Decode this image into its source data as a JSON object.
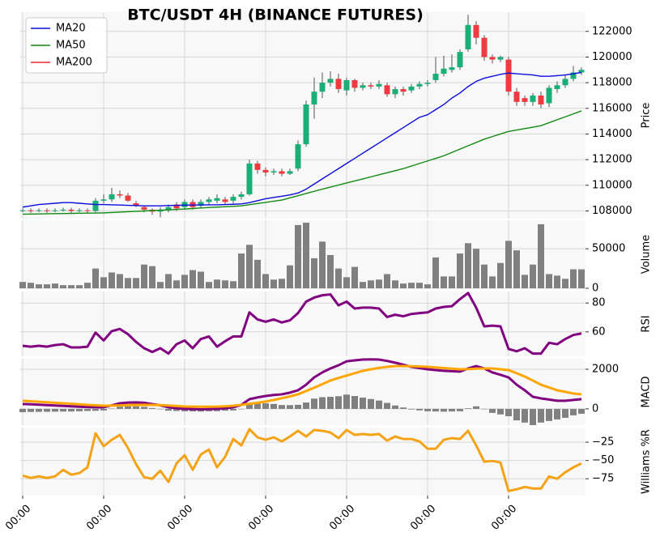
{
  "chart_data": [
    {
      "type": "candlestick",
      "title": "BTC/USDT 4H (BINANCE FUTURES)",
      "ylabel": "Price",
      "categories": [
        "00:00",
        null,
        null,
        null,
        null,
        null,
        null,
        null,
        null,
        null,
        "00:00",
        null,
        null,
        null,
        null,
        null,
        null,
        null,
        null,
        null,
        "00:00",
        null,
        null,
        null,
        null,
        null,
        null,
        null,
        null,
        null,
        "00:00",
        null,
        null,
        null,
        null,
        null,
        null,
        null,
        null,
        null,
        "00:00",
        null,
        null,
        null,
        null,
        null,
        null,
        null,
        null,
        null,
        "00:00",
        null,
        null,
        null,
        null,
        null,
        null,
        null,
        null,
        null,
        "00:00",
        null,
        null,
        null,
        null,
        null,
        null,
        null,
        null,
        null
      ],
      "open": [
        108000,
        108050,
        108000,
        108050,
        108000,
        108050,
        108100,
        108000,
        108050,
        108000,
        108800,
        108900,
        109300,
        109200,
        108600,
        108300,
        108100,
        107950,
        108050,
        108500,
        108300,
        108700,
        108400,
        108700,
        108800,
        108900,
        108800,
        109100,
        109300,
        111700,
        111200,
        111000,
        111100,
        110900,
        111300,
        113200,
        116300,
        117300,
        118000,
        118300,
        117400,
        118200,
        117600,
        117800,
        117700,
        117800,
        117100,
        117500,
        117400,
        117700,
        117900,
        118200,
        118700,
        119000,
        119200,
        120600,
        122500,
        121500,
        120000,
        119800,
        119800,
        117300,
        116800,
        116500,
        117000,
        116400,
        117500,
        117800,
        118300,
        118800
      ],
      "high": [
        108200,
        108200,
        108200,
        108200,
        108200,
        108250,
        108250,
        108200,
        108200,
        109000,
        109300,
        109800,
        109600,
        109400,
        108800,
        108400,
        108200,
        108300,
        108500,
        108700,
        108900,
        108900,
        108900,
        109100,
        109300,
        109100,
        109300,
        109500,
        112000,
        111900,
        111400,
        111300,
        111300,
        111300,
        113500,
        116600,
        118400,
        118800,
        118900,
        118700,
        118400,
        118300,
        118000,
        118000,
        118200,
        118000,
        117700,
        117700,
        117900,
        118100,
        118200,
        120000,
        120100,
        120200,
        120600,
        123300,
        122800,
        121700,
        120200,
        120100,
        120000,
        117600,
        117000,
        117200,
        117300,
        117800,
        118100,
        118600,
        119300,
        119200
      ],
      "low": [
        107900,
        107850,
        107900,
        107850,
        107900,
        107950,
        107850,
        107900,
        107850,
        107900,
        108600,
        108700,
        109000,
        108700,
        108300,
        107900,
        107700,
        107500,
        107900,
        108000,
        108100,
        108100,
        108200,
        108500,
        108600,
        108500,
        108600,
        108900,
        109200,
        110900,
        110700,
        110800,
        110700,
        110800,
        111100,
        113000,
        115200,
        116800,
        117700,
        117200,
        117000,
        117300,
        117400,
        117500,
        117500,
        116900,
        116800,
        117000,
        117200,
        117500,
        117700,
        118000,
        118500,
        118800,
        119000,
        120400,
        121000,
        119700,
        119500,
        119600,
        117000,
        116200,
        116200,
        116200,
        116000,
        116100,
        117200,
        117600,
        118100,
        118600
      ],
      "close": [
        108050,
        108000,
        108050,
        108000,
        108050,
        108100,
        108000,
        108050,
        108000,
        108800,
        108900,
        109300,
        109200,
        108800,
        108400,
        108100,
        107950,
        108050,
        108300,
        108200,
        108700,
        108300,
        108700,
        108900,
        109000,
        108700,
        109100,
        109300,
        111700,
        111200,
        111000,
        111100,
        110900,
        111100,
        113200,
        116300,
        117300,
        118000,
        118300,
        117500,
        118200,
        117600,
        117800,
        117700,
        117900,
        117100,
        117500,
        117300,
        117700,
        117900,
        118000,
        118700,
        119100,
        119200,
        120400,
        122500,
        121500,
        120000,
        119800,
        120000,
        117300,
        116500,
        116500,
        117000,
        116300,
        117600,
        117800,
        118300,
        118800,
        119000
      ],
      "up_color": "#1aaf76",
      "down_color": "#ee3a40",
      "series": [
        {
          "name": "MA20",
          "color": "#0b0bdc",
          "values": [
            108300,
            108400,
            108500,
            108550,
            108600,
            108650,
            108650,
            108600,
            108550,
            108500,
            108500,
            108480,
            108460,
            108440,
            108420,
            108400,
            108400,
            108400,
            108420,
            108440,
            108450,
            108460,
            108470,
            108480,
            108480,
            108500,
            108520,
            108550,
            108650,
            108800,
            108950,
            109050,
            109150,
            109250,
            109400,
            109700,
            110100,
            110500,
            110900,
            111300,
            111700,
            112100,
            112500,
            112900,
            113300,
            113700,
            114100,
            114500,
            114900,
            115300,
            115500,
            115900,
            116300,
            116800,
            117200,
            117700,
            118100,
            118350,
            118500,
            118650,
            118750,
            118700,
            118650,
            118600,
            118500,
            118500,
            118550,
            118600,
            118700,
            118800
          ]
        },
        {
          "name": "MA50",
          "color": "#128a12",
          "values": [
            107750,
            107760,
            107770,
            107780,
            107790,
            107800,
            107810,
            107820,
            107830,
            107840,
            107850,
            107880,
            107910,
            107940,
            107970,
            108000,
            108030,
            108060,
            108090,
            108120,
            108150,
            108190,
            108230,
            108270,
            108300,
            108330,
            108360,
            108400,
            108490,
            108580,
            108670,
            108760,
            108850,
            109020,
            109190,
            109360,
            109530,
            109700,
            109860,
            110020,
            110180,
            110340,
            110500,
            110660,
            110820,
            110980,
            111140,
            111300,
            111500,
            111700,
            111900,
            112100,
            112300,
            112560,
            112820,
            113080,
            113340,
            113600,
            113800,
            114000,
            114200,
            114310,
            114420,
            114530,
            114650,
            114880,
            115110,
            115340,
            115570,
            115800
          ]
        },
        {
          "name": "MA200",
          "color": "#e8282f",
          "values": [
            null,
            null,
            null,
            null,
            null,
            null,
            null,
            null,
            null,
            null,
            null,
            null,
            null,
            null,
            null,
            null,
            null,
            null,
            null,
            null,
            null,
            null,
            null,
            null,
            null,
            null,
            null,
            null,
            null,
            null,
            null,
            null,
            null,
            null,
            null,
            null,
            null,
            null,
            null,
            null,
            null,
            null,
            null,
            null,
            null,
            null,
            null,
            null,
            null,
            null,
            null,
            null,
            null,
            null,
            null,
            null,
            null,
            null,
            null,
            null,
            null,
            null,
            null,
            null,
            null,
            null,
            null,
            null,
            null,
            null
          ]
        }
      ],
      "legend": "upper left",
      "grid": true,
      "ylim": [
        107400,
        123500
      ],
      "yticks": [
        108000,
        110000,
        112000,
        114000,
        116000,
        118000,
        120000,
        122000
      ]
    },
    {
      "type": "bar",
      "ylabel": "Volume",
      "color": "#808080",
      "grid": true,
      "values": [
        8000,
        7000,
        5000,
        5000,
        6000,
        4000,
        4000,
        4000,
        7000,
        25000,
        14000,
        20000,
        18000,
        13000,
        13000,
        30000,
        28000,
        8000,
        18000,
        10000,
        17000,
        23000,
        21000,
        8000,
        11000,
        10000,
        9000,
        44000,
        55000,
        36000,
        18000,
        11000,
        12000,
        29000,
        80000,
        83000,
        38000,
        59000,
        42000,
        25000,
        14000,
        27000,
        8000,
        10000,
        11000,
        18000,
        10000,
        6000,
        7000,
        7000,
        5000,
        39000,
        15000,
        15000,
        44000,
        57000,
        50000,
        30000,
        15000,
        32000,
        60000,
        48000,
        17000,
        30000,
        81000,
        18000,
        16000,
        12000,
        24000,
        24000
      ],
      "ylim": [
        0,
        86000
      ],
      "yticks": [
        0,
        50000
      ]
    },
    {
      "type": "line",
      "ylabel": "RSI",
      "grid": true,
      "series": [
        {
          "color": "#800080",
          "values": [
            50.3,
            49.7,
            50.3,
            49.7,
            50.8,
            51.4,
            49.2,
            49.2,
            49.7,
            59.5,
            54,
            60.5,
            62,
            58.4,
            53,
            48.6,
            46,
            48.6,
            44.9,
            51.4,
            54,
            48.6,
            55,
            56.8,
            49.7,
            53.5,
            56.8,
            56.8,
            73.5,
            68.6,
            67,
            68.6,
            66.5,
            68,
            73,
            81,
            83.8,
            85.4,
            86,
            78.4,
            81,
            76.2,
            76.8,
            76.8,
            76.2,
            70.3,
            71.9,
            70.8,
            72.4,
            73,
            73.5,
            76.2,
            77.3,
            77.8,
            82.7,
            87,
            76.8,
            63.8,
            64.3,
            63.8,
            48.1,
            46.5,
            48.6,
            44.9,
            44.9,
            52.4,
            51.4,
            55,
            57.8,
            58.9
          ]
        }
      ],
      "ylim": [
        43,
        88
      ],
      "yticks": [
        60,
        80
      ]
    },
    {
      "type": "line",
      "ylabel": "MACD",
      "grid": true,
      "series": [
        {
          "color": "#800080",
          "values": [
            245,
            230,
            210,
            190,
            170,
            150,
            130,
            110,
            95,
            85,
            80,
            180,
            285,
            320,
            330,
            310,
            245,
            180,
            80,
            40,
            0,
            -10,
            -20,
            -10,
            0,
            40,
            80,
            200,
            490,
            580,
            650,
            700,
            735,
            820,
            940,
            1220,
            1590,
            1840,
            2040,
            2200,
            2400,
            2450,
            2490,
            2500,
            2490,
            2420,
            2330,
            2230,
            2120,
            2060,
            2000,
            1960,
            1920,
            1900,
            1880,
            2040,
            2160,
            2040,
            1840,
            1720,
            1590,
            1220,
            940,
            610,
            530,
            470,
            410,
            410,
            450,
            490
          ]
        },
        {
          "color": "#ffa500",
          "values": [
            410,
            385,
            360,
            335,
            310,
            285,
            260,
            230,
            200,
            180,
            160,
            165,
            175,
            190,
            200,
            205,
            200,
            190,
            170,
            145,
            120,
            115,
            112,
            110,
            115,
            130,
            160,
            200,
            260,
            310,
            370,
            450,
            540,
            630,
            735,
            900,
            1070,
            1250,
            1430,
            1560,
            1680,
            1800,
            1920,
            2000,
            2070,
            2120,
            2160,
            2160,
            2150,
            2135,
            2120,
            2090,
            2060,
            2030,
            2000,
            2010,
            2030,
            2040,
            2040,
            2000,
            1960,
            1800,
            1630,
            1430,
            1220,
            1080,
            940,
            860,
            775,
            735
          ]
        }
      ],
      "histogram": {
        "color": "#808080",
        "values": [
          -165,
          -155,
          -150,
          -145,
          -140,
          -135,
          -130,
          -120,
          -105,
          -95,
          -80,
          15,
          110,
          130,
          130,
          105,
          45,
          -10,
          -90,
          -105,
          -120,
          -125,
          -132,
          -120,
          -115,
          -90,
          -80,
          0,
          230,
          270,
          280,
          250,
          195,
          190,
          205,
          320,
          520,
          590,
          610,
          640,
          720,
          650,
          570,
          500,
          420,
          300,
          170,
          70,
          -30,
          -75,
          -120,
          -130,
          -140,
          -130,
          -120,
          30,
          130,
          0,
          -200,
          -280,
          -370,
          -580,
          -690,
          -820,
          -690,
          -610,
          -530,
          -450,
          -325,
          -245
        ]
      },
      "ylim": [
        -820,
        2530
      ],
      "yticks": [
        0,
        2000
      ]
    },
    {
      "type": "line",
      "ylabel": "Williams %R",
      "grid": true,
      "series": [
        {
          "color": "#f5a316",
          "values": [
            -70.6,
            -73.9,
            -71.7,
            -73.9,
            -71.7,
            -62.8,
            -69.4,
            -67.2,
            -59.4,
            -12.8,
            -30.6,
            -21.7,
            -15,
            -32.8,
            -55,
            -72.8,
            -75,
            -63.9,
            -79.4,
            -53.9,
            -42.8,
            -62.8,
            -41.7,
            -35,
            -59.4,
            -45,
            -20.6,
            -29.4,
            -7.2,
            -18.3,
            -21.7,
            -18.3,
            -23.9,
            -17.2,
            -9.4,
            -17.2,
            -8.3,
            -9.4,
            -11.7,
            -19.4,
            -8.3,
            -15,
            -13.9,
            -15,
            -13.9,
            -22.8,
            -17.2,
            -20.6,
            -20.6,
            -23.9,
            -33.9,
            -33.9,
            -21.7,
            -19.4,
            -20.6,
            -9.4,
            -29.4,
            -51.7,
            -50.6,
            -52.8,
            -91.7,
            -89.4,
            -86.1,
            -88.3,
            -88.3,
            -71.7,
            -75,
            -66.1,
            -59.4,
            -53.9
          ]
        }
      ],
      "ylim": [
        -98,
        -5
      ],
      "yticks": [
        {
          "value": -25,
          "label": "−25"
        },
        {
          "value": -50,
          "label": "−50"
        },
        {
          "value": -75,
          "label": "−75"
        }
      ]
    }
  ]
}
